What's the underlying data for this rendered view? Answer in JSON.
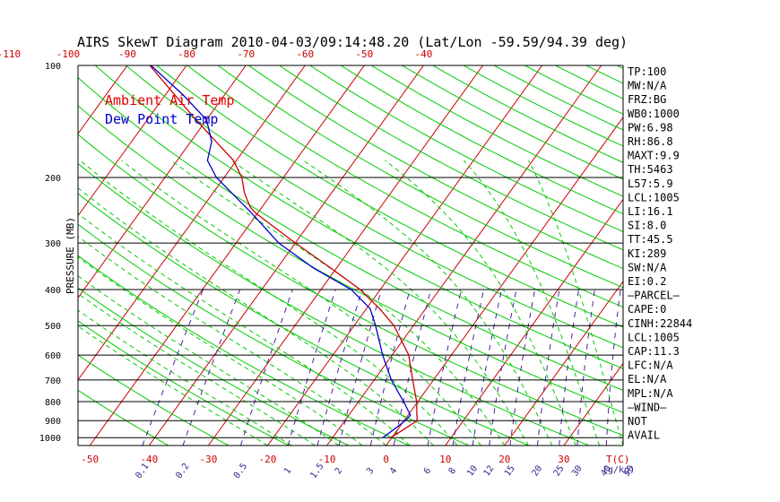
{
  "chart_data": {
    "type": "line",
    "title": "AIRS SkewT Diagram 2010-04-03/09:14:48.20 (Lat/Lon -59.59/94.39 deg)",
    "ylabel": "PRESSURE (MB)",
    "xlabel_bottom_unit": "T(C)",
    "mixing_ratio_unit": "(g/kg)",
    "y_scale": "log",
    "ylim": [
      1050,
      100
    ],
    "xlim_bottom": [
      -52,
      40
    ],
    "pressure_ticks": [
      100,
      200,
      300,
      400,
      500,
      600,
      700,
      800,
      900,
      1000
    ],
    "temp_ticks_top": [
      -120,
      -110,
      -100,
      -90,
      -80,
      -70,
      -60,
      -50,
      -40
    ],
    "temp_ticks_bottom": [
      -50,
      -40,
      -30,
      -20,
      -10,
      0,
      10,
      20,
      30
    ],
    "mixing_ratio_labels": [
      "0.1",
      "0.2",
      "0.5",
      "1",
      "1.5",
      "2",
      "3",
      "4",
      "6",
      "8",
      "10",
      "12",
      "15",
      "20",
      "25",
      "30",
      "40",
      "50"
    ],
    "legend": [
      {
        "name": "Ambient Air Temp",
        "color": "#e00000"
      },
      {
        "name": "Dew Point Temp",
        "color": "#0000cc"
      }
    ],
    "series": [
      {
        "name": "Ambient Air Temp",
        "color": "#cc0000",
        "points": [
          {
            "p": 1000,
            "t": -0.2
          },
          {
            "p": 960,
            "t": 0.8
          },
          {
            "p": 930,
            "t": 1.5
          },
          {
            "p": 900,
            "t": 2.2
          },
          {
            "p": 870,
            "t": 1.5
          },
          {
            "p": 800,
            "t": -0.2
          },
          {
            "p": 700,
            "t": -3.5
          },
          {
            "p": 600,
            "t": -7.2
          },
          {
            "p": 500,
            "t": -13.3
          },
          {
            "p": 450,
            "t": -17.8
          },
          {
            "p": 400,
            "t": -23.4
          },
          {
            "p": 350,
            "t": -31.0
          },
          {
            "p": 300,
            "t": -40.0
          },
          {
            "p": 250,
            "t": -50.2
          },
          {
            "p": 240,
            "t": -52.0
          },
          {
            "p": 220,
            "t": -54.7
          },
          {
            "p": 200,
            "t": -57.0
          },
          {
            "p": 180,
            "t": -60.5
          },
          {
            "p": 150,
            "t": -68.7
          },
          {
            "p": 140,
            "t": -71.8
          },
          {
            "p": 100,
            "t": -86.2
          }
        ]
      },
      {
        "name": "Dew Point Temp",
        "color": "#0000cc",
        "points": [
          {
            "p": 1000,
            "t": -1.5
          },
          {
            "p": 960,
            "t": -0.8
          },
          {
            "p": 930,
            "t": -0.3
          },
          {
            "p": 900,
            "t": 0.2
          },
          {
            "p": 870,
            "t": 0.4
          },
          {
            "p": 800,
            "t": -2.4
          },
          {
            "p": 700,
            "t": -7.1
          },
          {
            "p": 600,
            "t": -11.6
          },
          {
            "p": 500,
            "t": -16.4
          },
          {
            "p": 450,
            "t": -19.4
          },
          {
            "p": 400,
            "t": -24.9
          },
          {
            "p": 350,
            "t": -33.9
          },
          {
            "p": 300,
            "t": -42.8
          },
          {
            "p": 250,
            "t": -50.9
          },
          {
            "p": 200,
            "t": -61.3
          },
          {
            "p": 180,
            "t": -64.9
          },
          {
            "p": 160,
            "t": -66.5
          },
          {
            "p": 140,
            "t": -70.0
          },
          {
            "p": 120,
            "t": -77.0
          },
          {
            "p": 100,
            "t": -86.0
          }
        ]
      }
    ],
    "indices": [
      "TP:100",
      "MW:N/A",
      "FRZ:BG",
      "WB0:1000",
      "PW:6.98",
      "RH:86.8",
      "MAXT:9.9",
      "TH:5463",
      "L57:5.9",
      "LCL:1005",
      "LI:16.1",
      "SI:8.0",
      "TT:45.5",
      "KI:289",
      "SW:N/A",
      "EI:0.2",
      "—PARCEL—",
      "CAPE:0",
      "CINH:22844",
      "LCL:1005",
      "CAP:11.3",
      "LFC:N/A",
      "EL:N/A",
      "MPL:N/A",
      "—WIND—",
      "NOT",
      "AVAIL"
    ],
    "colors": {
      "isotherm": "#cc0000",
      "dry_adiabat": "#00cc00",
      "moist_adiabat": "#00cc00",
      "mixing_ratio": "#4b1fa0",
      "isobar": "#000000"
    }
  }
}
